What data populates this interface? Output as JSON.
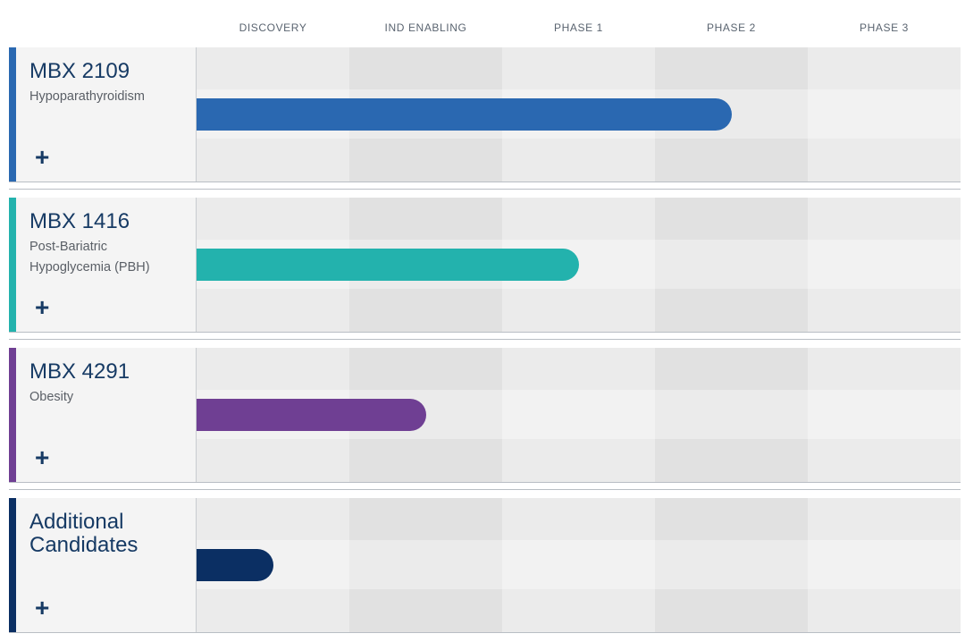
{
  "chart_data": {
    "type": "bar",
    "orientation": "horizontal",
    "stages": [
      "DISCOVERY",
      "IND ENABLING",
      "PHASE 1",
      "PHASE 2",
      "PHASE 3"
    ],
    "programs": [
      {
        "name": "MBX 2109",
        "indication": "Hypoparathyroidism",
        "progress_stages": 3.5,
        "color": "#2a68b1"
      },
      {
        "name": "MBX 1416",
        "indication": "Post-Bariatric Hypoglycemia (PBH)",
        "progress_stages": 2.5,
        "color": "#23b2ad"
      },
      {
        "name": "MBX 4291",
        "indication": "Obesity",
        "progress_stages": 1.5,
        "color": "#6f3f93"
      },
      {
        "name": "Additional Candidates",
        "indication": "",
        "progress_stages": 0.5,
        "color": "#0b2f63"
      }
    ],
    "xlim": [
      0,
      5
    ]
  },
  "ui": {
    "expand_symbol": "+"
  }
}
